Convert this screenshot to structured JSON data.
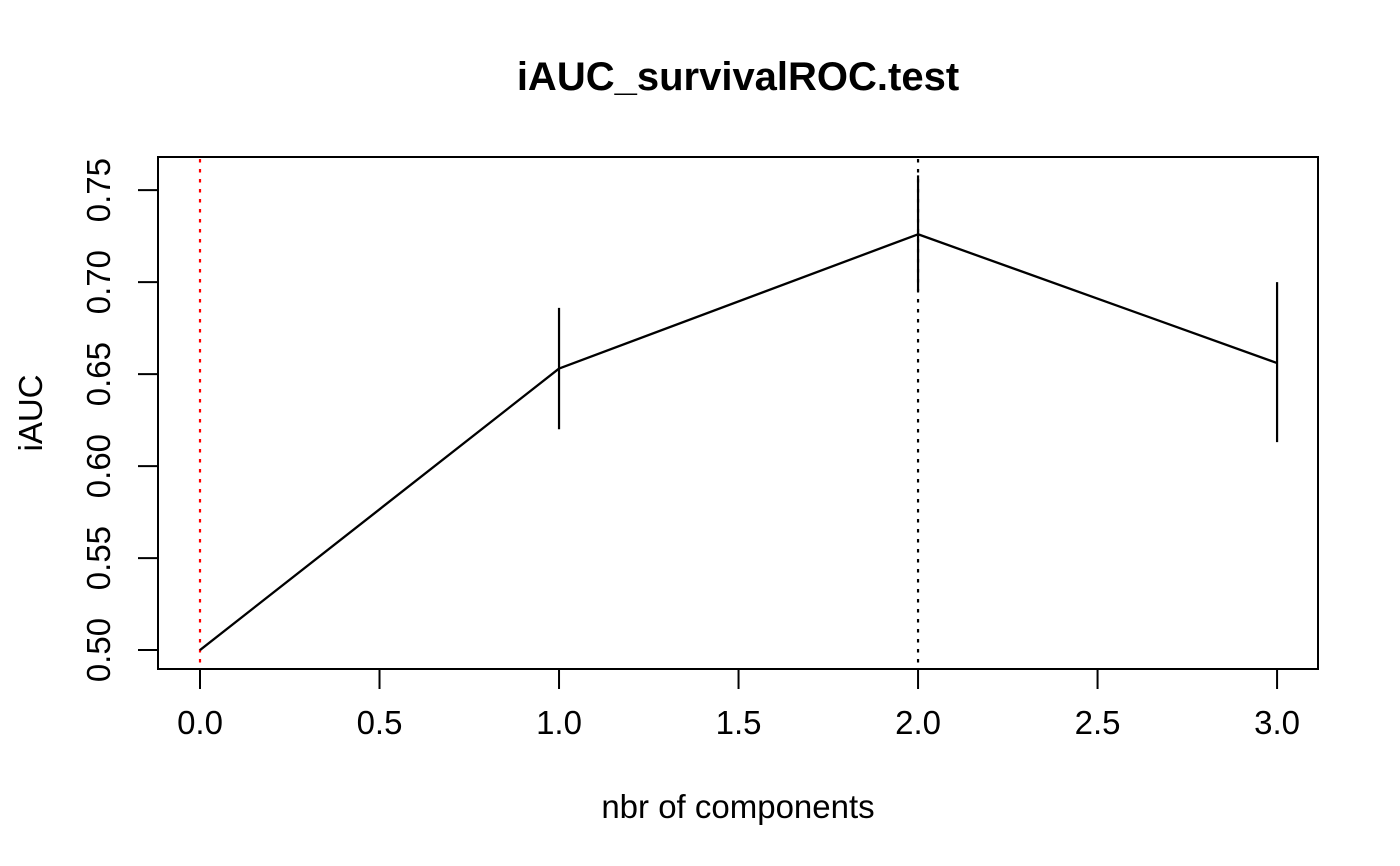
{
  "figure": {
    "title": "iAUC_survivalROC.test",
    "xlabel": "nbr of components",
    "ylabel": "iAUC",
    "background_color": "#ffffff",
    "foreground_color": "#000000"
  },
  "chart_data": {
    "type": "line",
    "title": "iAUC_survivalROC.test",
    "xlabel": "nbr of components",
    "ylabel": "iAUC",
    "x": [
      0,
      1,
      2,
      3
    ],
    "y": [
      0.5,
      0.653,
      0.726,
      0.656
    ],
    "error_bars": [
      {
        "x": 1,
        "low": 0.62,
        "high": 0.686
      },
      {
        "x": 2,
        "low": 0.695,
        "high": 0.758
      },
      {
        "x": 3,
        "low": 0.613,
        "high": 0.7
      }
    ],
    "x_ticks": [
      0.0,
      0.5,
      1.0,
      1.5,
      2.0,
      2.5,
      3.0
    ],
    "x_tick_labels": [
      "0.0",
      "0.5",
      "1.0",
      "1.5",
      "2.0",
      "2.5",
      "3.0"
    ],
    "y_ticks": [
      0.5,
      0.55,
      0.6,
      0.65,
      0.7,
      0.75
    ],
    "y_tick_labels": [
      "0.50",
      "0.55",
      "0.60",
      "0.65",
      "0.70",
      "0.75"
    ],
    "xlim": [
      -0.117,
      3.114
    ],
    "ylim": [
      0.4897,
      0.768
    ],
    "vlines": [
      {
        "x": 0,
        "color": "#ff0000",
        "style": "dotted"
      },
      {
        "x": 2,
        "color": "#000000",
        "style": "dotted"
      }
    ],
    "line_color": "#000000",
    "grid": false,
    "legend": null
  }
}
